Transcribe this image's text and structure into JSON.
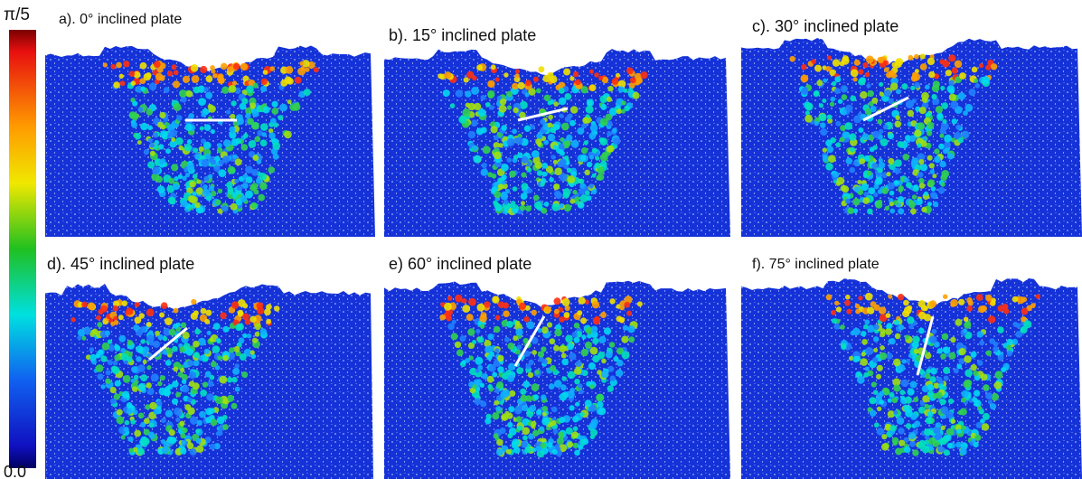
{
  "colorbar": {
    "top_label": "π/5",
    "bottom_label": "0.0"
  },
  "panels": [
    {
      "label": "a). 0° inclined plate"
    },
    {
      "label": "b). 15°  inclined plate"
    },
    {
      "label": "c). 30°  inclined plate"
    },
    {
      "label": "d). 45°  inclined plate"
    },
    {
      "label": "e) 60°  inclined plate"
    },
    {
      "label": "f). 75° inclined plate"
    }
  ]
}
